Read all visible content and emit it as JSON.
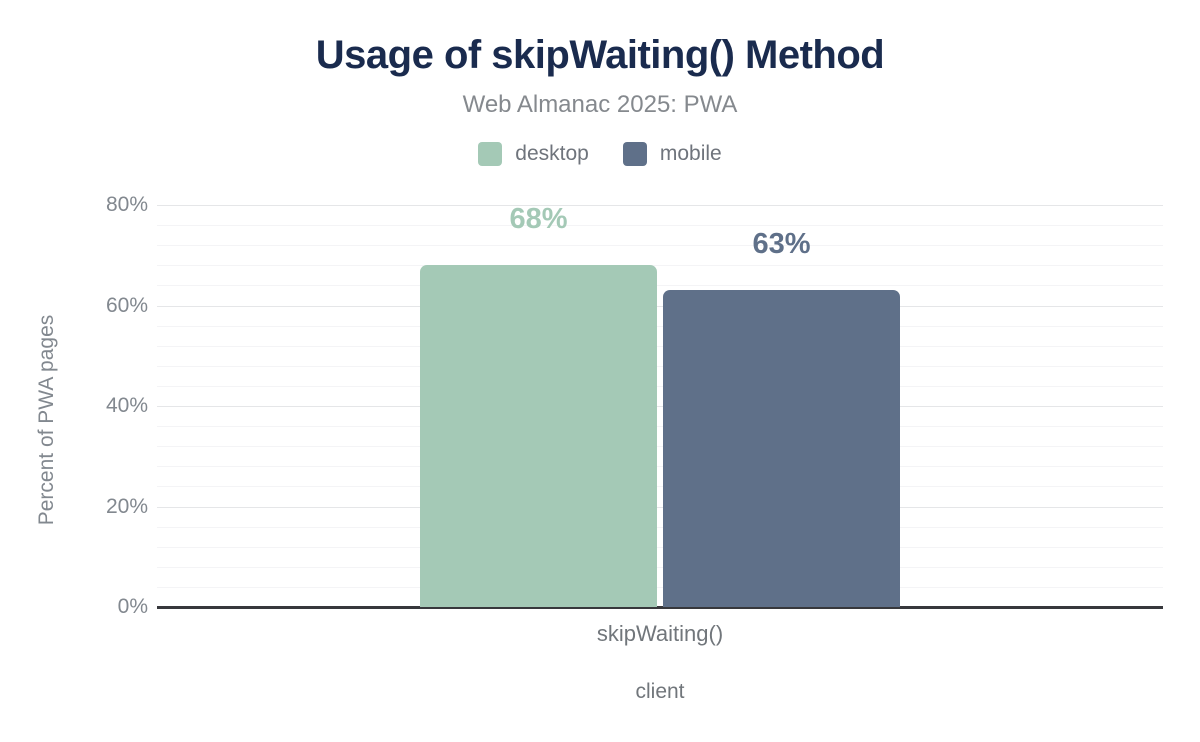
{
  "chart_data": {
    "type": "bar",
    "title": "Usage of skipWaiting() Method",
    "subtitle": "Web Almanac 2025: PWA",
    "xlabel": "client",
    "ylabel": "Percent of PWA pages",
    "categories": [
      "skipWaiting()"
    ],
    "series": [
      {
        "name": "desktop",
        "values": [
          68
        ],
        "data_labels": [
          "68%"
        ],
        "color": "#a4c9b6"
      },
      {
        "name": "mobile",
        "values": [
          63
        ],
        "data_labels": [
          "63%"
        ],
        "color": "#5f7089"
      }
    ],
    "ylim": [
      0,
      80
    ],
    "yticks": [
      {
        "value": 0,
        "label": "0%"
      },
      {
        "value": 20,
        "label": "20%"
      },
      {
        "value": 40,
        "label": "40%"
      },
      {
        "value": 60,
        "label": "60%"
      },
      {
        "value": 80,
        "label": "80%"
      }
    ],
    "minor_grid_interval": 4,
    "grid": "horizontal",
    "legend_position": "top-center"
  },
  "colors": {
    "background": "#ffffff",
    "title_text": "#1a2b4e",
    "subtitle_text": "#85898e",
    "legend_text": "#6f747c",
    "y_tick_text": "#82888f",
    "x_tick_text": "#71767b",
    "major_gridline": "#e5e6e8",
    "minor_gridline": "#f4f4f6",
    "axis_line": "#37383c",
    "desktop_series": "#a4c9b6",
    "mobile_series": "#5f7089"
  }
}
